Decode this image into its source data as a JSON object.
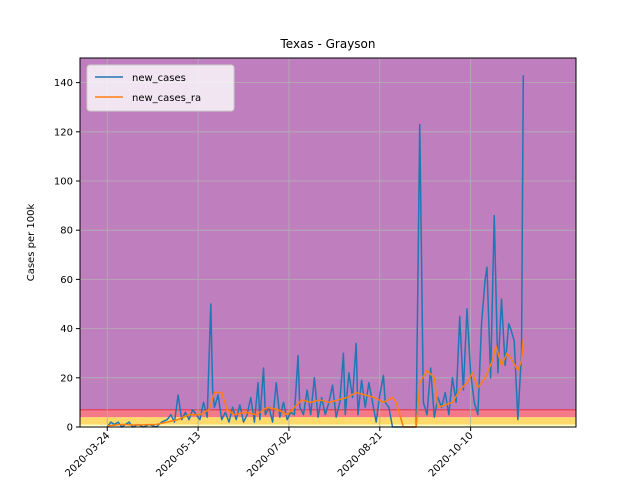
{
  "chart_data": {
    "type": "line",
    "title": "Texas - Grayson",
    "ylabel": "Cases per 100k",
    "xlabel": "",
    "ylim": [
      0,
      150
    ],
    "xlim": [
      "2020-03-09",
      "2020-12-07"
    ],
    "yticks": [
      0,
      20,
      40,
      60,
      80,
      100,
      120,
      140
    ],
    "xticks": [
      "2020-03-24",
      "2020-05-13",
      "2020-07-02",
      "2020-08-21",
      "2020-10-10"
    ],
    "grid": true,
    "legend_position": "upper-left",
    "background_bands": [
      {
        "from": 0,
        "to": 1,
        "color": "#ffffcc"
      },
      {
        "from": 1,
        "to": 4,
        "color": "#ffda6a"
      },
      {
        "from": 4,
        "to": 7,
        "color": "#f47a87"
      },
      {
        "from": 7,
        "to": 150,
        "color": "#bf7fbf"
      }
    ],
    "series": [
      {
        "name": "new_cases",
        "color": "#1f77b4",
        "points": [
          [
            "2020-03-24",
            0
          ],
          [
            "2020-03-26",
            2
          ],
          [
            "2020-03-28",
            1
          ],
          [
            "2020-03-30",
            2
          ],
          [
            "2020-04-01",
            0
          ],
          [
            "2020-04-03",
            1
          ],
          [
            "2020-04-05",
            2
          ],
          [
            "2020-04-07",
            0
          ],
          [
            "2020-04-10",
            1
          ],
          [
            "2020-04-13",
            0
          ],
          [
            "2020-04-16",
            1
          ],
          [
            "2020-04-20",
            0
          ],
          [
            "2020-04-23",
            2
          ],
          [
            "2020-04-26",
            3
          ],
          [
            "2020-04-28",
            5
          ],
          [
            "2020-04-30",
            2
          ],
          [
            "2020-05-02",
            13
          ],
          [
            "2020-05-04",
            3
          ],
          [
            "2020-05-06",
            6
          ],
          [
            "2020-05-08",
            3
          ],
          [
            "2020-05-10",
            7
          ],
          [
            "2020-05-12",
            5
          ],
          [
            "2020-05-14",
            3
          ],
          [
            "2020-05-16",
            10
          ],
          [
            "2020-05-18",
            4
          ],
          [
            "2020-05-20",
            50
          ],
          [
            "2020-05-21",
            15
          ],
          [
            "2020-05-22",
            8
          ],
          [
            "2020-05-24",
            13
          ],
          [
            "2020-05-26",
            3
          ],
          [
            "2020-05-28",
            6
          ],
          [
            "2020-05-30",
            2
          ],
          [
            "2020-06-01",
            8
          ],
          [
            "2020-06-03",
            3
          ],
          [
            "2020-06-05",
            9
          ],
          [
            "2020-06-07",
            2
          ],
          [
            "2020-06-09",
            5
          ],
          [
            "2020-06-11",
            12
          ],
          [
            "2020-06-13",
            2
          ],
          [
            "2020-06-15",
            18
          ],
          [
            "2020-06-16",
            3
          ],
          [
            "2020-06-18",
            24
          ],
          [
            "2020-06-19",
            5
          ],
          [
            "2020-06-21",
            8
          ],
          [
            "2020-06-23",
            2
          ],
          [
            "2020-06-25",
            18
          ],
          [
            "2020-06-27",
            4
          ],
          [
            "2020-06-29",
            10
          ],
          [
            "2020-07-01",
            3
          ],
          [
            "2020-07-03",
            6
          ],
          [
            "2020-07-05",
            5
          ],
          [
            "2020-07-07",
            29
          ],
          [
            "2020-07-08",
            8
          ],
          [
            "2020-07-10",
            5
          ],
          [
            "2020-07-12",
            15
          ],
          [
            "2020-07-14",
            5
          ],
          [
            "2020-07-16",
            20
          ],
          [
            "2020-07-18",
            4
          ],
          [
            "2020-07-20",
            12
          ],
          [
            "2020-07-22",
            5
          ],
          [
            "2020-07-24",
            10
          ],
          [
            "2020-07-26",
            17
          ],
          [
            "2020-07-28",
            4
          ],
          [
            "2020-07-30",
            10
          ],
          [
            "2020-08-01",
            30
          ],
          [
            "2020-08-02",
            5
          ],
          [
            "2020-08-04",
            22
          ],
          [
            "2020-08-06",
            12
          ],
          [
            "2020-08-08",
            34
          ],
          [
            "2020-08-09",
            5
          ],
          [
            "2020-08-11",
            19
          ],
          [
            "2020-08-13",
            8
          ],
          [
            "2020-08-15",
            18
          ],
          [
            "2020-08-17",
            10
          ],
          [
            "2020-08-19",
            2
          ],
          [
            "2020-08-21",
            13
          ],
          [
            "2020-08-23",
            21
          ],
          [
            "2020-08-24",
            10
          ],
          [
            "2020-08-26",
            8
          ],
          [
            "2020-08-28",
            0
          ],
          [
            "2020-09-10",
            0
          ],
          [
            "2020-09-12",
            123
          ],
          [
            "2020-09-14",
            10
          ],
          [
            "2020-09-16",
            5
          ],
          [
            "2020-09-18",
            24
          ],
          [
            "2020-09-20",
            4
          ],
          [
            "2020-09-22",
            12
          ],
          [
            "2020-09-24",
            8
          ],
          [
            "2020-09-26",
            14
          ],
          [
            "2020-09-28",
            5
          ],
          [
            "2020-09-30",
            20
          ],
          [
            "2020-10-02",
            10
          ],
          [
            "2020-10-04",
            45
          ],
          [
            "2020-10-06",
            15
          ],
          [
            "2020-10-08",
            48
          ],
          [
            "2020-10-10",
            22
          ],
          [
            "2020-10-12",
            10
          ],
          [
            "2020-10-14",
            5
          ],
          [
            "2020-10-16",
            42
          ],
          [
            "2020-10-18",
            60
          ],
          [
            "2020-10-19",
            65
          ],
          [
            "2020-10-21",
            20
          ],
          [
            "2020-10-23",
            86
          ],
          [
            "2020-10-25",
            22
          ],
          [
            "2020-10-27",
            52
          ],
          [
            "2020-10-29",
            25
          ],
          [
            "2020-10-31",
            42
          ],
          [
            "2020-11-01",
            40
          ],
          [
            "2020-11-03",
            35
          ],
          [
            "2020-11-05",
            3
          ],
          [
            "2020-11-07",
            30
          ],
          [
            "2020-11-08",
            143
          ]
        ]
      },
      {
        "name": "new_cases_ra",
        "color": "#ff7f0e",
        "points": [
          [
            "2020-03-24",
            0.5
          ],
          [
            "2020-04-01",
            1
          ],
          [
            "2020-04-10",
            0.8
          ],
          [
            "2020-04-20",
            1
          ],
          [
            "2020-04-26",
            2
          ],
          [
            "2020-05-02",
            3
          ],
          [
            "2020-05-08",
            5
          ],
          [
            "2020-05-14",
            5
          ],
          [
            "2020-05-19",
            7
          ],
          [
            "2020-05-22",
            14
          ],
          [
            "2020-05-26",
            14
          ],
          [
            "2020-05-29",
            7
          ],
          [
            "2020-06-02",
            5
          ],
          [
            "2020-06-08",
            6
          ],
          [
            "2020-06-14",
            5
          ],
          [
            "2020-06-20",
            8
          ],
          [
            "2020-06-26",
            7
          ],
          [
            "2020-07-01",
            5
          ],
          [
            "2020-07-05",
            8
          ],
          [
            "2020-07-09",
            11
          ],
          [
            "2020-07-14",
            10
          ],
          [
            "2020-07-19",
            11
          ],
          [
            "2020-07-24",
            10
          ],
          [
            "2020-07-29",
            11
          ],
          [
            "2020-08-03",
            12
          ],
          [
            "2020-08-08",
            14
          ],
          [
            "2020-08-13",
            13
          ],
          [
            "2020-08-18",
            12
          ],
          [
            "2020-08-23",
            10
          ],
          [
            "2020-08-28",
            12
          ],
          [
            "2020-08-30",
            10
          ],
          [
            "2020-09-03",
            0
          ],
          [
            "2020-09-10",
            0
          ],
          [
            "2020-09-12",
            18
          ],
          [
            "2020-09-16",
            23
          ],
          [
            "2020-09-20",
            20
          ],
          [
            "2020-09-22",
            8
          ],
          [
            "2020-09-26",
            9
          ],
          [
            "2020-09-30",
            10
          ],
          [
            "2020-10-04",
            15
          ],
          [
            "2020-10-08",
            18
          ],
          [
            "2020-10-11",
            22
          ],
          [
            "2020-10-14",
            16
          ],
          [
            "2020-10-18",
            20
          ],
          [
            "2020-10-22",
            27
          ],
          [
            "2020-10-24",
            33
          ],
          [
            "2020-10-27",
            25
          ],
          [
            "2020-10-30",
            30
          ],
          [
            "2020-11-02",
            27
          ],
          [
            "2020-11-05",
            23
          ],
          [
            "2020-11-07",
            27
          ],
          [
            "2020-11-08",
            36
          ]
        ]
      }
    ]
  }
}
